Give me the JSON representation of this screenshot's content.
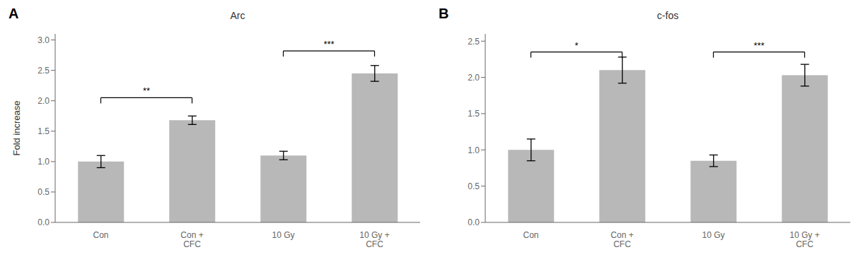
{
  "chart_data": [
    {
      "type": "bar",
      "title": "Arc",
      "panel_label": "A",
      "categories": [
        "Con",
        "Con +\nCFC",
        "10 Gy",
        "10 Gy +\nCFC"
      ],
      "values": [
        1.0,
        1.68,
        1.1,
        2.45
      ],
      "errors": [
        0.1,
        0.07,
        0.07,
        0.13
      ],
      "ylabel": "Fold increase",
      "ylim": [
        0,
        3.1
      ],
      "yticks": [
        {
          "value": 0,
          "label": "0.0"
        },
        0.5,
        {
          "value": 1.0,
          "label": "1.0"
        },
        1.5,
        {
          "value": 2.0,
          "label": "2.0"
        },
        2.5,
        {
          "value": 3.0,
          "label": "3.0"
        }
      ],
      "color": "#b8b8b8",
      "annotations": [
        {
          "bars": [
            0,
            1
          ],
          "label": "**",
          "y": 2.05
        },
        {
          "bars": [
            2,
            3
          ],
          "label": "***",
          "y": 2.82
        }
      ]
    },
    {
      "type": "bar",
      "title": "c-fos",
      "panel_label": "B",
      "categories": [
        "Con",
        "Con +\nCFC",
        "10 Gy",
        "10 Gy +\nCFC"
      ],
      "values": [
        1.0,
        2.1,
        0.85,
        2.03
      ],
      "errors": [
        0.15,
        0.18,
        0.08,
        0.15
      ],
      "ylim": [
        0,
        2.6
      ],
      "yticks": [
        {
          "value": 0,
          "label": "0.0"
        },
        0.5,
        {
          "value": 1.0,
          "label": "1.0"
        },
        1.5,
        {
          "value": 2.0,
          "label": "2.0"
        },
        2.5
      ],
      "color": "#b8b8b8",
      "annotations": [
        {
          "bars": [
            0,
            1
          ],
          "label": "*",
          "y": 2.35
        },
        {
          "bars": [
            2,
            3
          ],
          "label": "***",
          "y": 2.35
        }
      ]
    }
  ]
}
